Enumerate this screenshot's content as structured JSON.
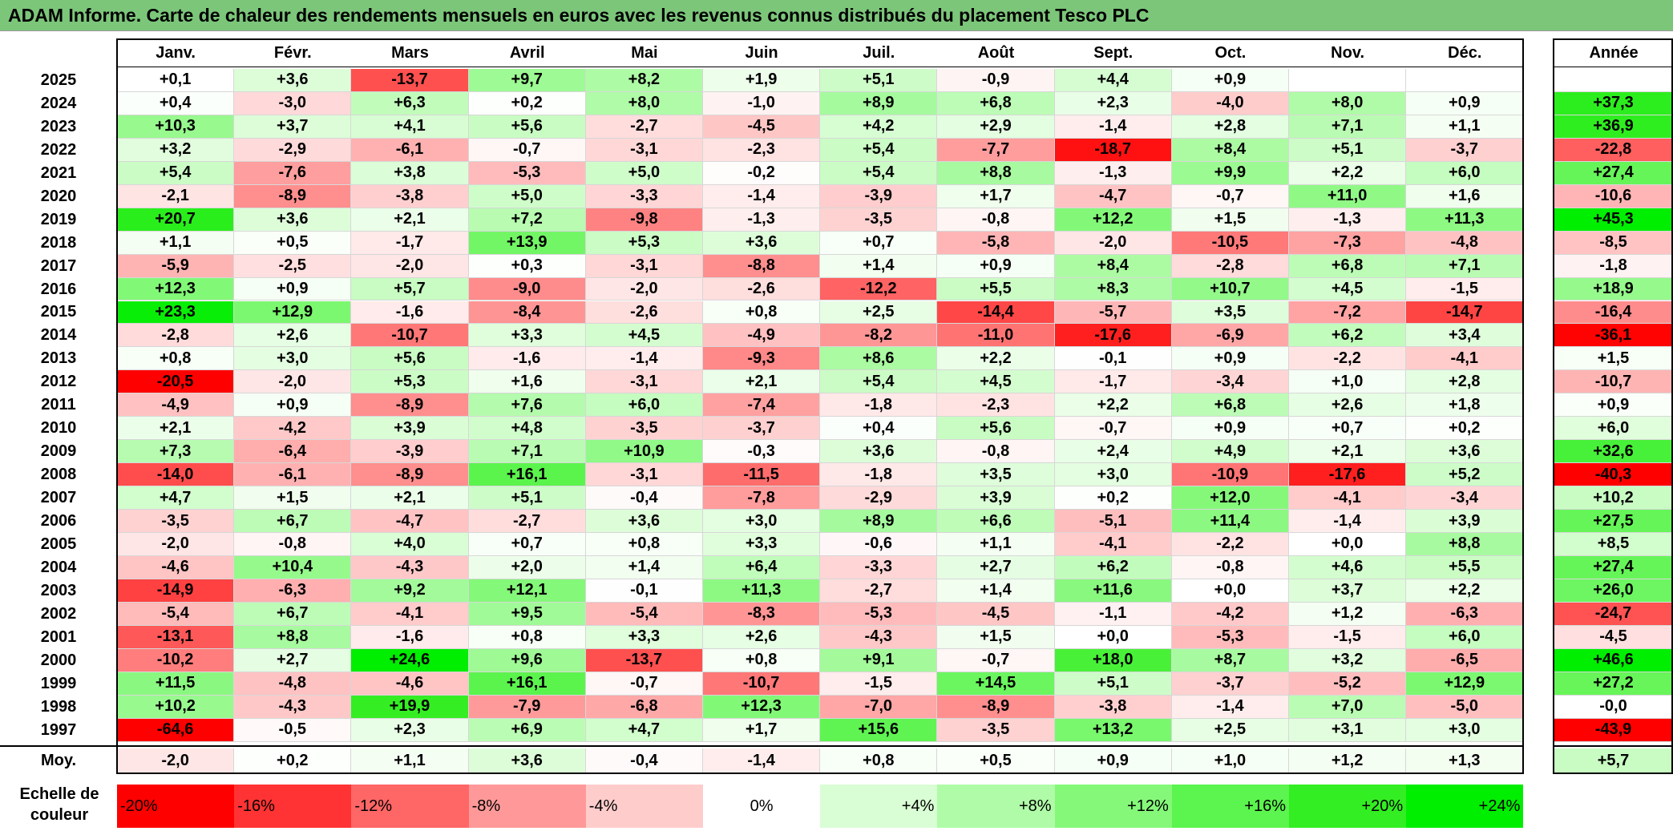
{
  "title": "ADAM Informe. Carte de chaleur des rendements mensuels en euros avec les revenus connus distribués du placement Tesco PLC",
  "chart_data": {
    "type": "heatmap",
    "title": "ADAM Informe. Carte de chaleur des rendements mensuels en euros avec les revenus connus distribués du placement Tesco PLC",
    "columns": [
      "Janv.",
      "Févr.",
      "Mars",
      "Avril",
      "Mai",
      "Juin",
      "Juil.",
      "Août",
      "Sept.",
      "Oct.",
      "Nov.",
      "Déc."
    ],
    "annual_label": "Année",
    "rows": [
      {
        "year": "2025",
        "values": [
          "+0,1",
          "+3,6",
          "-13,7",
          "+9,7",
          "+8,2",
          "+1,9",
          "+5,1",
          "-0,9",
          "+4,4",
          "+0,9",
          "",
          ""
        ],
        "annual": ""
      },
      {
        "year": "2024",
        "values": [
          "+0,4",
          "-3,0",
          "+6,3",
          "+0,2",
          "+8,0",
          "-1,0",
          "+8,9",
          "+6,8",
          "+2,3",
          "-4,0",
          "+8,0",
          "+0,9"
        ],
        "annual": "+37,3"
      },
      {
        "year": "2023",
        "values": [
          "+10,3",
          "+3,7",
          "+4,1",
          "+5,6",
          "-2,7",
          "-4,5",
          "+4,2",
          "+2,9",
          "-1,4",
          "+2,8",
          "+7,1",
          "+1,1"
        ],
        "annual": "+36,9"
      },
      {
        "year": "2022",
        "values": [
          "+3,2",
          "-2,9",
          "-6,1",
          "-0,7",
          "-3,1",
          "-2,3",
          "+5,4",
          "-7,7",
          "-18,7",
          "+8,4",
          "+5,1",
          "-3,7"
        ],
        "annual": "-22,8"
      },
      {
        "year": "2021",
        "values": [
          "+5,4",
          "-7,6",
          "+3,8",
          "-5,3",
          "+5,0",
          "-0,2",
          "+5,4",
          "+8,8",
          "-1,3",
          "+9,9",
          "+2,2",
          "+6,0"
        ],
        "annual": "+27,4"
      },
      {
        "year": "2020",
        "values": [
          "-2,1",
          "-8,9",
          "-3,8",
          "+5,0",
          "-3,3",
          "-1,4",
          "-3,9",
          "+1,7",
          "-4,7",
          "-0,7",
          "+11,0",
          "+1,6"
        ],
        "annual": "-10,6"
      },
      {
        "year": "2019",
        "values": [
          "+20,7",
          "+3,6",
          "+2,1",
          "+7,2",
          "-9,8",
          "-1,3",
          "-3,5",
          "-0,8",
          "+12,2",
          "+1,5",
          "-1,3",
          "+11,3"
        ],
        "annual": "+45,3"
      },
      {
        "year": "2018",
        "values": [
          "+1,1",
          "+0,5",
          "-1,7",
          "+13,9",
          "+5,3",
          "+3,6",
          "+0,7",
          "-5,8",
          "-2,0",
          "-10,5",
          "-7,3",
          "-4,8"
        ],
        "annual": "-8,5"
      },
      {
        "year": "2017",
        "values": [
          "-5,9",
          "-2,5",
          "-2,0",
          "+0,3",
          "-3,1",
          "-8,8",
          "+1,4",
          "+0,9",
          "+8,4",
          "-2,8",
          "+6,8",
          "+7,1"
        ],
        "annual": "-1,8"
      },
      {
        "year": "2016",
        "values": [
          "+12,3",
          "+0,9",
          "+5,7",
          "-9,0",
          "-2,0",
          "-2,6",
          "-12,2",
          "+5,5",
          "+8,3",
          "+10,7",
          "+4,5",
          "-1,5"
        ],
        "annual": "+18,9"
      },
      {
        "year": "2015",
        "values": [
          "+23,3",
          "+12,9",
          "-1,6",
          "-8,4",
          "-2,6",
          "+0,8",
          "+2,5",
          "-14,4",
          "-5,7",
          "+3,5",
          "-7,2",
          "-14,7"
        ],
        "annual": "-16,4"
      },
      {
        "year": "2014",
        "values": [
          "-2,8",
          "+2,6",
          "-10,7",
          "+3,3",
          "+4,5",
          "-4,9",
          "-8,2",
          "-11,0",
          "-17,6",
          "-6,9",
          "+6,2",
          "+3,4"
        ],
        "annual": "-36,1"
      },
      {
        "year": "2013",
        "values": [
          "+0,8",
          "+3,0",
          "+5,6",
          "-1,6",
          "-1,4",
          "-9,3",
          "+8,6",
          "+2,2",
          "-0,1",
          "+0,9",
          "-2,2",
          "-4,1"
        ],
        "annual": "+1,5"
      },
      {
        "year": "2012",
        "values": [
          "-20,5",
          "-2,0",
          "+5,3",
          "+1,6",
          "-3,1",
          "+2,1",
          "+5,4",
          "+4,5",
          "-1,7",
          "-3,4",
          "+1,0",
          "+2,8"
        ],
        "annual": "-10,7"
      },
      {
        "year": "2011",
        "values": [
          "-4,9",
          "+0,9",
          "-8,9",
          "+7,6",
          "+6,0",
          "-7,4",
          "-1,8",
          "-2,3",
          "+2,2",
          "+6,8",
          "+2,6",
          "+1,8"
        ],
        "annual": "+0,9"
      },
      {
        "year": "2010",
        "values": [
          "+2,1",
          "-4,2",
          "+3,9",
          "+4,8",
          "-3,5",
          "-3,7",
          "+0,4",
          "+5,6",
          "-0,7",
          "+0,9",
          "+0,7",
          "+0,2"
        ],
        "annual": "+6,0"
      },
      {
        "year": "2009",
        "values": [
          "+7,3",
          "-6,4",
          "-3,9",
          "+7,1",
          "+10,9",
          "-0,3",
          "+3,6",
          "-0,8",
          "+2,4",
          "+4,9",
          "+2,1",
          "+3,6"
        ],
        "annual": "+32,6"
      },
      {
        "year": "2008",
        "values": [
          "-14,0",
          "-6,1",
          "-8,9",
          "+16,1",
          "-3,1",
          "-11,5",
          "-1,8",
          "+3,5",
          "+3,0",
          "-10,9",
          "-17,6",
          "+5,2"
        ],
        "annual": "-40,3"
      },
      {
        "year": "2007",
        "values": [
          "+4,7",
          "+1,5",
          "+2,1",
          "+5,1",
          "-0,4",
          "-7,8",
          "-2,9",
          "+3,9",
          "+0,2",
          "+12,0",
          "-4,1",
          "-3,4"
        ],
        "annual": "+10,2"
      },
      {
        "year": "2006",
        "values": [
          "-3,5",
          "+6,7",
          "-4,7",
          "-2,7",
          "+3,6",
          "+3,0",
          "+8,9",
          "+6,6",
          "-5,1",
          "+11,4",
          "-1,4",
          "+3,9"
        ],
        "annual": "+27,5"
      },
      {
        "year": "2005",
        "values": [
          "-2,0",
          "-0,8",
          "+4,0",
          "+0,7",
          "+0,8",
          "+3,3",
          "-0,6",
          "+1,1",
          "-4,1",
          "-2,2",
          "+0,0",
          "+8,8"
        ],
        "annual": "+8,5"
      },
      {
        "year": "2004",
        "values": [
          "-4,6",
          "+10,4",
          "-4,3",
          "+2,0",
          "+1,4",
          "+6,4",
          "-3,3",
          "+2,7",
          "+6,2",
          "-0,8",
          "+4,6",
          "+5,5"
        ],
        "annual": "+27,4"
      },
      {
        "year": "2003",
        "values": [
          "-14,9",
          "-6,3",
          "+9,2",
          "+12,1",
          "-0,1",
          "+11,3",
          "-2,7",
          "+1,4",
          "+11,6",
          "+0,0",
          "+3,7",
          "+2,2"
        ],
        "annual": "+26,0"
      },
      {
        "year": "2002",
        "values": [
          "-5,4",
          "+6,7",
          "-4,1",
          "+9,5",
          "-5,4",
          "-8,3",
          "-5,3",
          "-4,5",
          "-1,1",
          "-4,2",
          "+1,2",
          "-6,3"
        ],
        "annual": "-24,7"
      },
      {
        "year": "2001",
        "values": [
          "-13,1",
          "+8,8",
          "-1,6",
          "+0,8",
          "+3,3",
          "+2,6",
          "-4,3",
          "+1,5",
          "+0,0",
          "-5,3",
          "-1,5",
          "+6,0"
        ],
        "annual": "-4,5"
      },
      {
        "year": "2000",
        "values": [
          "-10,2",
          "+2,7",
          "+24,6",
          "+9,6",
          "-13,7",
          "+0,8",
          "+9,1",
          "-0,7",
          "+18,0",
          "+8,7",
          "+3,2",
          "-6,5"
        ],
        "annual": "+46,6"
      },
      {
        "year": "1999",
        "values": [
          "+11,5",
          "-4,8",
          "-4,6",
          "+16,1",
          "-0,7",
          "-10,7",
          "-1,5",
          "+14,5",
          "+5,1",
          "-3,7",
          "-5,2",
          "+12,9"
        ],
        "annual": "+27,2"
      },
      {
        "year": "1998",
        "values": [
          "+10,2",
          "-4,3",
          "+19,9",
          "-7,9",
          "-6,8",
          "+12,3",
          "-7,0",
          "-8,9",
          "-3,8",
          "-1,4",
          "+7,0",
          "-5,0"
        ],
        "annual": "-0,0"
      },
      {
        "year": "1997",
        "values": [
          "-64,6",
          "-0,5",
          "+2,3",
          "+6,9",
          "+4,7",
          "+1,7",
          "+15,6",
          "-3,5",
          "+13,2",
          "+2,5",
          "+3,1",
          "+3,0"
        ],
        "annual": "-43,9"
      }
    ],
    "average": {
      "label": "Moy.",
      "values": [
        "-2,0",
        "+0,2",
        "+1,1",
        "+3,6",
        "-0,4",
        "-1,4",
        "+0,8",
        "+0,5",
        "+0,9",
        "+1,0",
        "+1,2",
        "+1,3"
      ],
      "annual": "+5,7"
    },
    "color_scale": {
      "label": "Echelle de couleur",
      "stops": [
        {
          "label": "-20%",
          "value": -20,
          "color": "#ff0000"
        },
        {
          "label": "-16%",
          "value": -16,
          "color": "#ff3333"
        },
        {
          "label": "-12%",
          "value": -12,
          "color": "#ff6666"
        },
        {
          "label": "-8%",
          "value": -8,
          "color": "#ff9999"
        },
        {
          "label": "-4%",
          "value": -4,
          "color": "#ffcccc"
        },
        {
          "label": "0%",
          "value": 0,
          "color": "#ffffff"
        },
        {
          "label": "+4%",
          "value": 4,
          "color": "#d9fdd5"
        },
        {
          "label": "+8%",
          "value": 8,
          "color": "#b0fba8"
        },
        {
          "label": "+12%",
          "value": 12,
          "color": "#85f87a"
        },
        {
          "label": "+16%",
          "value": 16,
          "color": "#5cf44e"
        },
        {
          "label": "+20%",
          "value": 20,
          "color": "#33ee22"
        },
        {
          "label": "+24%",
          "value": 24,
          "color": "#00ee00"
        }
      ]
    }
  }
}
